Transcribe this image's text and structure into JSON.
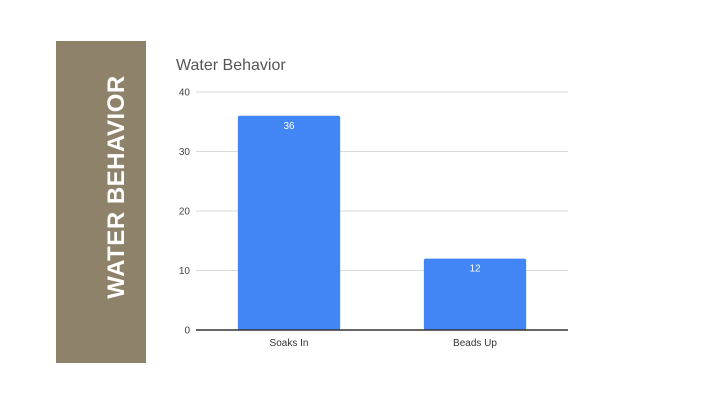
{
  "slide": {
    "side_title": "WATER BEHAVIOR",
    "banner_color": "#8f826b"
  },
  "chart_data": {
    "type": "bar",
    "title": "Water Behavior",
    "categories": [
      "Soaks In",
      "Beads Up"
    ],
    "values": [
      36,
      12
    ],
    "data_labels": [
      "36",
      "12"
    ],
    "y_ticks": [
      "0",
      "10",
      "20",
      "30",
      "40"
    ],
    "ylim": [
      0,
      40
    ],
    "xlabel": "",
    "ylabel": "",
    "grid": true,
    "legend": "none",
    "bar_color": "#4285f4",
    "grid_color": "#d9d9d9",
    "axis_color": "#333333"
  }
}
